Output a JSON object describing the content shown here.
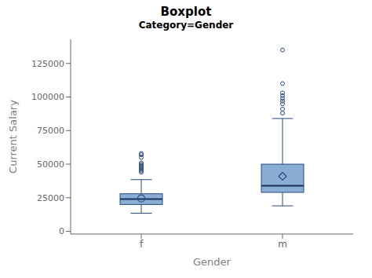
{
  "chart_data": {
    "type": "box",
    "title": "Boxplot",
    "subtitle": "Category=Gender",
    "xlabel": "Gender",
    "ylabel": "Current Salary",
    "categories": [
      "f",
      "m"
    ],
    "boxes": [
      {
        "q1": 20000,
        "median": 24000,
        "q3": 28000,
        "whisker_low": 13500,
        "whisker_high": 38500,
        "mean": 24500,
        "outliers": [
          44000,
          45000,
          46000,
          47000,
          48000,
          49000,
          50000,
          51000,
          55000,
          57000,
          58000
        ],
        "marker": "circle"
      },
      {
        "q1": 29000,
        "median": 34000,
        "q3": 50000,
        "whisker_low": 19000,
        "whisker_high": 84000,
        "mean": 41000,
        "outliers": [
          88000,
          91000,
          95000,
          97000,
          99000,
          101000,
          103000,
          110000,
          135000
        ],
        "marker": "diamond"
      }
    ],
    "color": "#8aadd4",
    "ylim": [
      -2000,
      143000
    ],
    "yticks": [
      0,
      25000,
      50000,
      75000,
      100000,
      125000
    ],
    "grid": false
  }
}
